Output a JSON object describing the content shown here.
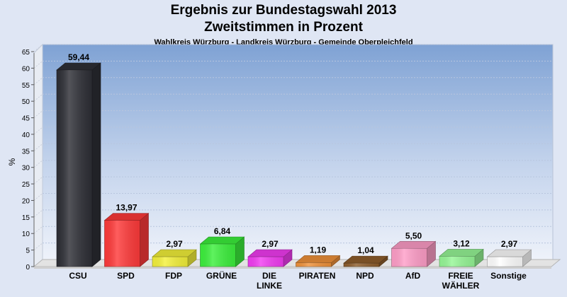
{
  "chart_data": {
    "type": "bar",
    "title": "Ergebnis zur Bundestagswahl 2013",
    "title_line2": "Zweitstimmen in Prozent",
    "subtitle": "Wahlkreis Würzburg - Landkreis Würzburg - Gemeinde Oberpleichfeld",
    "ylabel": "%",
    "ylim": [
      0,
      65
    ],
    "yticks": [
      "0",
      "5",
      "10",
      "15",
      "20",
      "25",
      "30",
      "35",
      "40",
      "45",
      "50",
      "55",
      "60",
      "65"
    ],
    "grid": true,
    "categories": [
      [
        "CSU"
      ],
      [
        "SPD"
      ],
      [
        "FDP"
      ],
      [
        "GRÜNE"
      ],
      [
        "DIE",
        "LINKE"
      ],
      [
        "PIRATEN"
      ],
      [
        "NPD"
      ],
      [
        "AfD"
      ],
      [
        "FREIE",
        "WÄHLER"
      ],
      [
        "Sonstige"
      ]
    ],
    "values": [
      59.44,
      13.97,
      2.97,
      6.84,
      2.97,
      1.19,
      1.04,
      5.5,
      3.12,
      2.97
    ],
    "value_labels": [
      "59,44",
      "13,97",
      "2,97",
      "6,84",
      "2,97",
      "1,19",
      "1,04",
      "5,50",
      "3,12",
      "2,97"
    ],
    "colors": [
      "#2e2f36",
      "#ff3a3a",
      "#f4f13a",
      "#3cf03c",
      "#f23cf2",
      "#f0923a",
      "#8f5e2c",
      "#ff9ec8",
      "#96f796",
      "#ffffff"
    ]
  }
}
